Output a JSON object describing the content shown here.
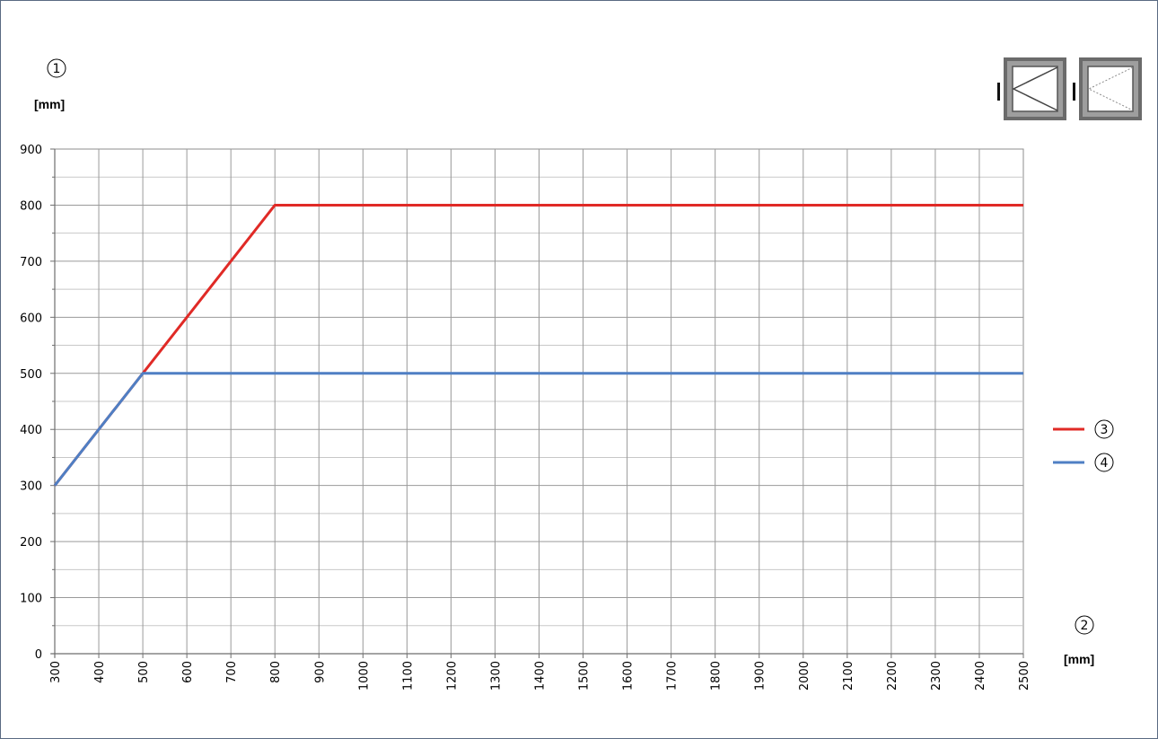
{
  "chart_data": {
    "type": "line",
    "y_marker": "1",
    "y_unit": "[mm]",
    "x_marker": "2",
    "x_unit": "[mm]",
    "xlim": [
      300,
      2500
    ],
    "ylim": [
      0,
      900
    ],
    "x_ticks": [
      "300",
      "400",
      "500",
      "600",
      "700",
      "800",
      "900",
      "1000",
      "1100",
      "1200",
      "1300",
      "1400",
      "1500",
      "1600",
      "1700",
      "1800",
      "1900",
      "2000",
      "2100",
      "2200",
      "2300",
      "2400",
      "2500"
    ],
    "y_ticks": [
      "0",
      "100",
      "200",
      "300",
      "400",
      "500",
      "600",
      "700",
      "800",
      "900"
    ],
    "grid": true,
    "legend_position": "right",
    "series": [
      {
        "legend_marker": "3",
        "color": "#e02a26",
        "points": [
          [
            300,
            300
          ],
          [
            800,
            800
          ],
          [
            2500,
            800
          ]
        ]
      },
      {
        "legend_marker": "4",
        "color": "#4f7fc4",
        "points": [
          [
            300,
            300
          ],
          [
            500,
            500
          ],
          [
            2500,
            500
          ]
        ]
      }
    ]
  },
  "icons": {
    "left": "window-tilt-turn-left-icon",
    "right": "window-tilt-turn-right-dashed-icon"
  }
}
